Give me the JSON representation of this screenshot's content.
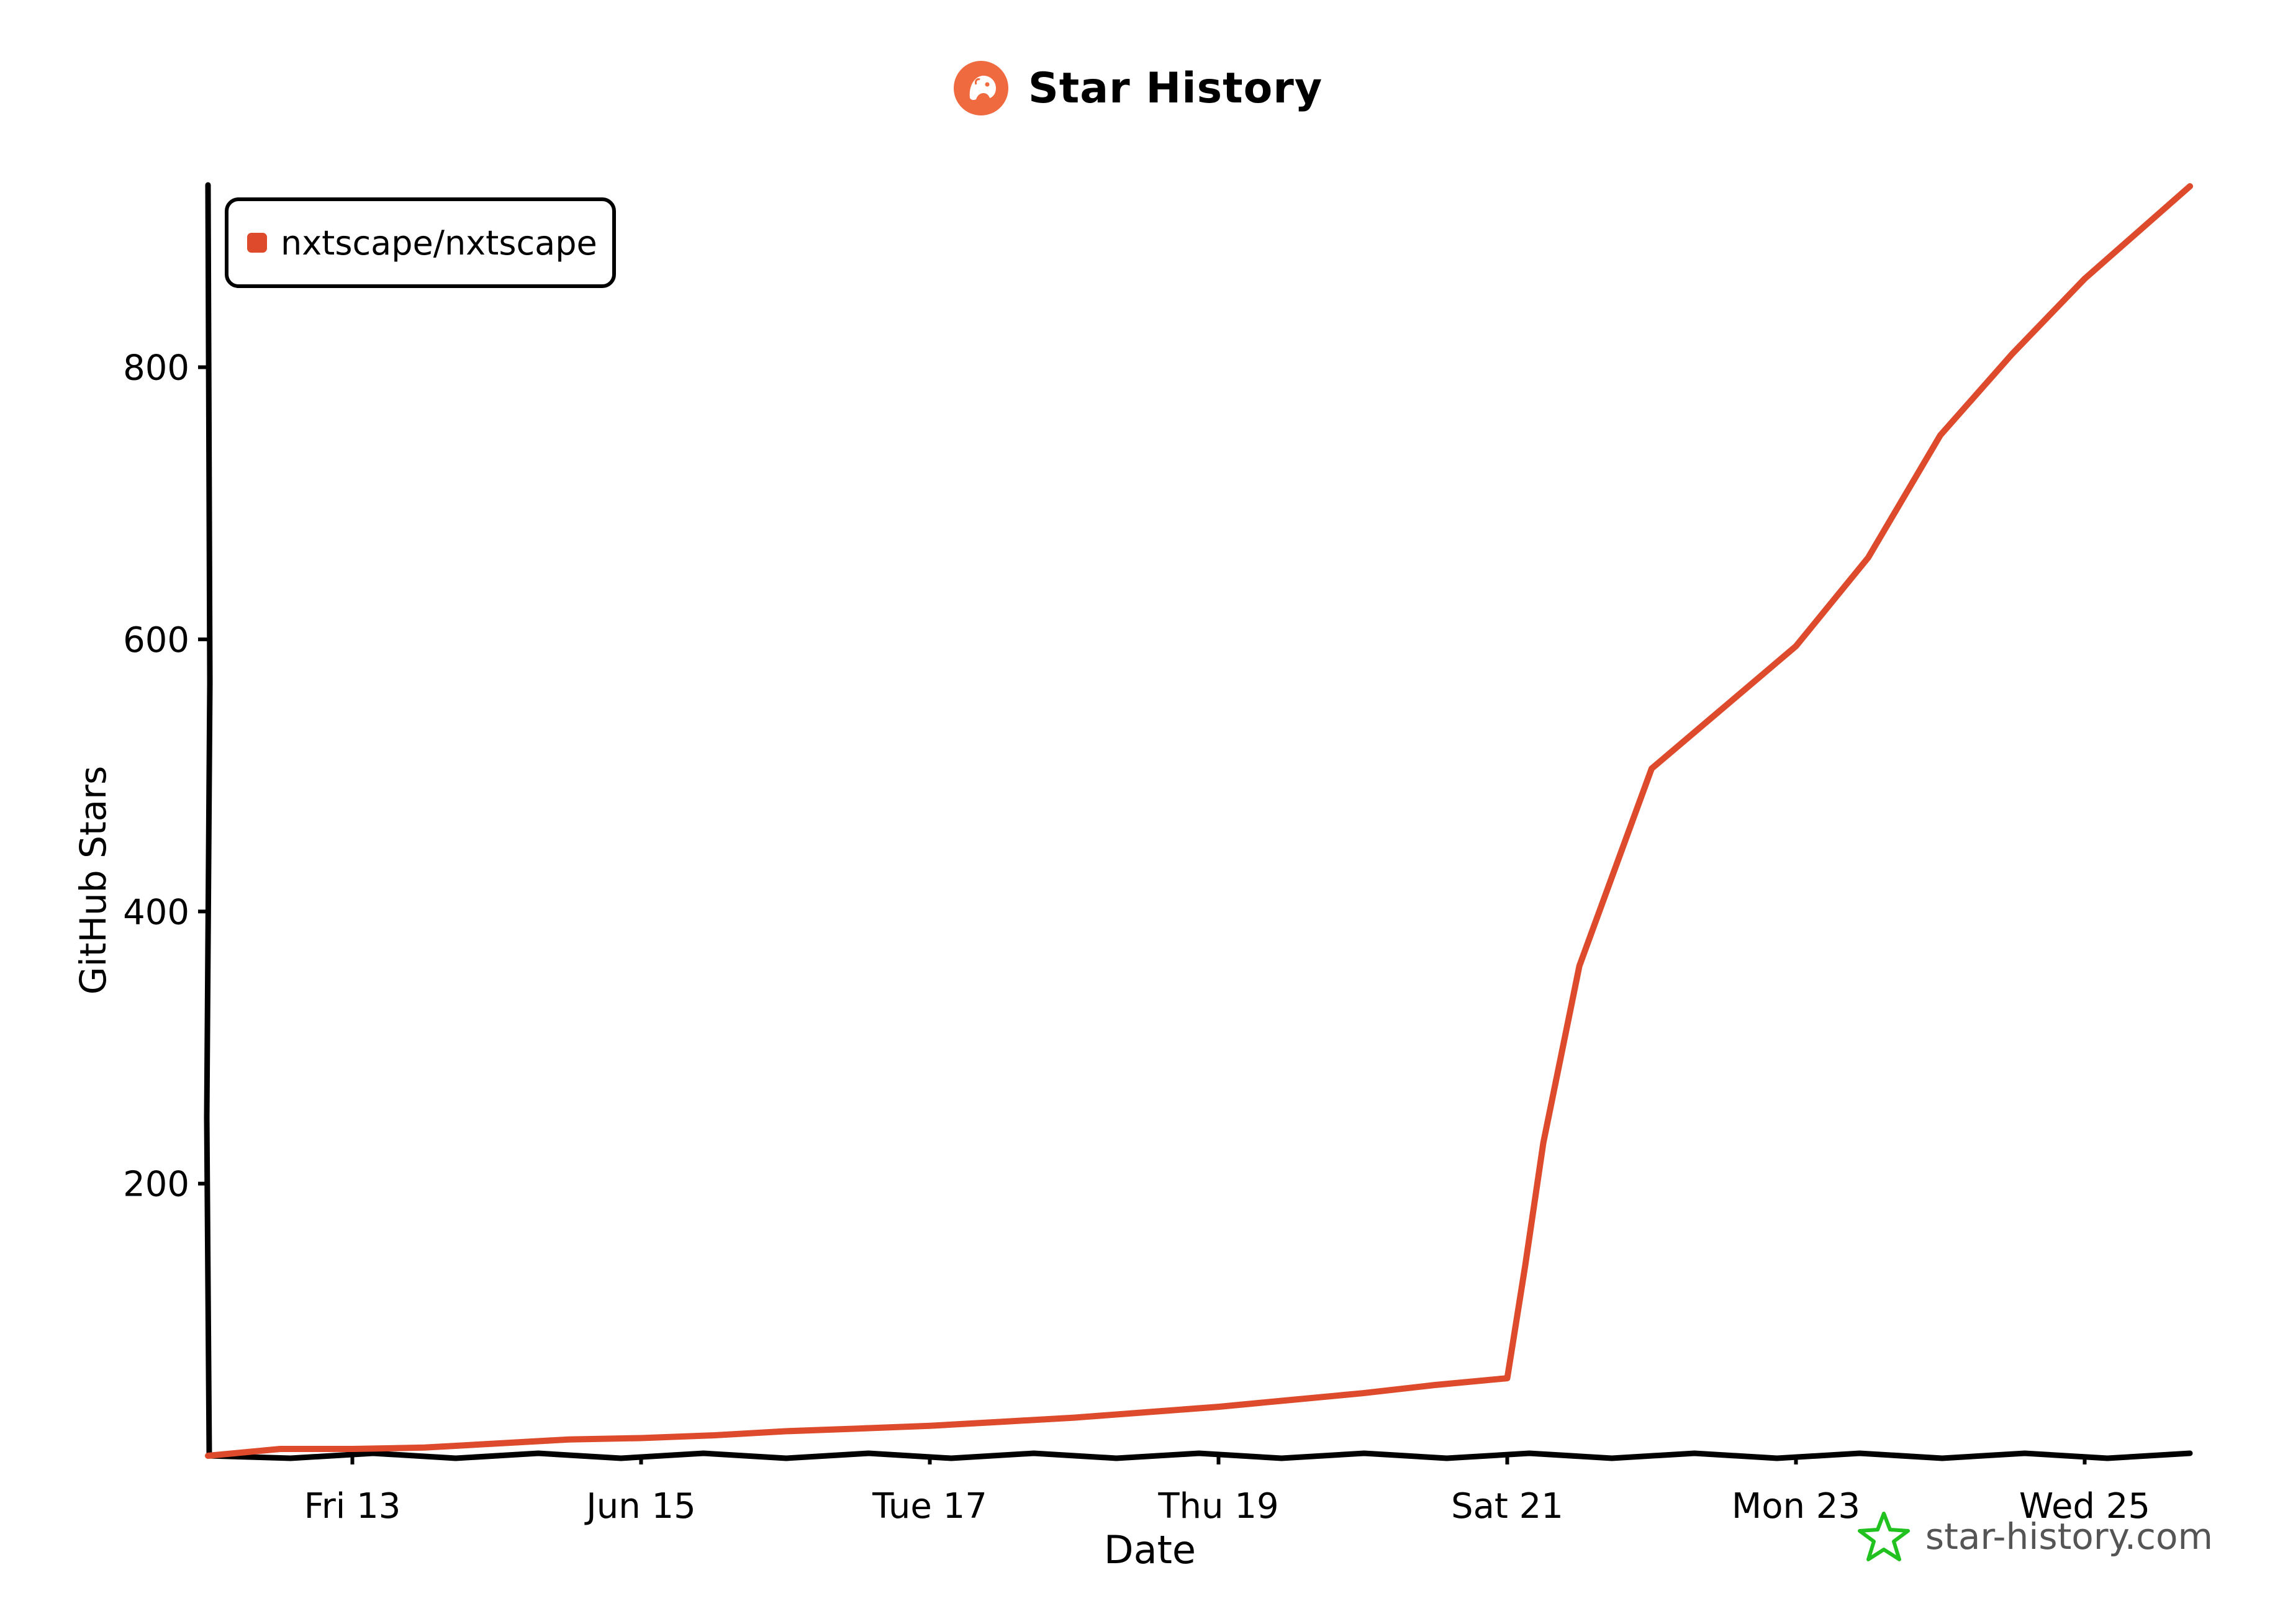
{
  "header": {
    "title": "Star History",
    "logo_icon": "star-history-dog-icon"
  },
  "watermark": {
    "text": "star-history.com",
    "icon": "star-icon",
    "icon_color": "#21c21f"
  },
  "chart_data": {
    "type": "line",
    "title": "Star History",
    "xlabel": "Date",
    "ylabel": "GitHub Stars",
    "x_tick_labels": [
      "Fri 13",
      "Jun 15",
      "Tue 17",
      "Thu 19",
      "Sat 21",
      "Mon 23",
      "Wed 25"
    ],
    "y_tick_labels": [
      "200",
      "400",
      "600",
      "800"
    ],
    "x_tick_values": [
      "2025-06-13",
      "2025-06-15",
      "2025-06-17",
      "2025-06-19",
      "2025-06-21",
      "2025-06-23",
      "2025-06-25"
    ],
    "y_tick_values": [
      200,
      400,
      600,
      800
    ],
    "xlim": [
      "2025-06-12",
      "2025-06-25T17:30"
    ],
    "ylim": [
      0,
      933
    ],
    "grid": false,
    "legend_position": "top-left",
    "series": [
      {
        "name": "nxtscape/nxtscape",
        "color": "#dd4b2c",
        "points": [
          {
            "x": "2025-06-12T00:00",
            "y": 0
          },
          {
            "x": "2025-06-12T12:00",
            "y": 5
          },
          {
            "x": "2025-06-13T00:00",
            "y": 5
          },
          {
            "x": "2025-06-13T12:00",
            "y": 6
          },
          {
            "x": "2025-06-14T00:00",
            "y": 9
          },
          {
            "x": "2025-06-14T12:00",
            "y": 12
          },
          {
            "x": "2025-06-15T00:00",
            "y": 13
          },
          {
            "x": "2025-06-15T12:00",
            "y": 15
          },
          {
            "x": "2025-06-16T00:00",
            "y": 18
          },
          {
            "x": "2025-06-16T12:00",
            "y": 20
          },
          {
            "x": "2025-06-17T00:00",
            "y": 22
          },
          {
            "x": "2025-06-17T12:00",
            "y": 25
          },
          {
            "x": "2025-06-18T00:00",
            "y": 28
          },
          {
            "x": "2025-06-18T12:00",
            "y": 32
          },
          {
            "x": "2025-06-19T00:00",
            "y": 36
          },
          {
            "x": "2025-06-19T12:00",
            "y": 41
          },
          {
            "x": "2025-06-20T00:00",
            "y": 46
          },
          {
            "x": "2025-06-20T12:00",
            "y": 52
          },
          {
            "x": "2025-06-21T00:00",
            "y": 57
          },
          {
            "x": "2025-06-21T03:00",
            "y": 140
          },
          {
            "x": "2025-06-21T06:00",
            "y": 230
          },
          {
            "x": "2025-06-21T12:00",
            "y": 360
          },
          {
            "x": "2025-06-22T00:00",
            "y": 505
          },
          {
            "x": "2025-06-22T12:00",
            "y": 550
          },
          {
            "x": "2025-06-23T00:00",
            "y": 595
          },
          {
            "x": "2025-06-23T12:00",
            "y": 660
          },
          {
            "x": "2025-06-24T00:00",
            "y": 750
          },
          {
            "x": "2025-06-24T12:00",
            "y": 810
          },
          {
            "x": "2025-06-25T00:00",
            "y": 865
          },
          {
            "x": "2025-06-25T17:30",
            "y": 933
          }
        ]
      }
    ]
  }
}
